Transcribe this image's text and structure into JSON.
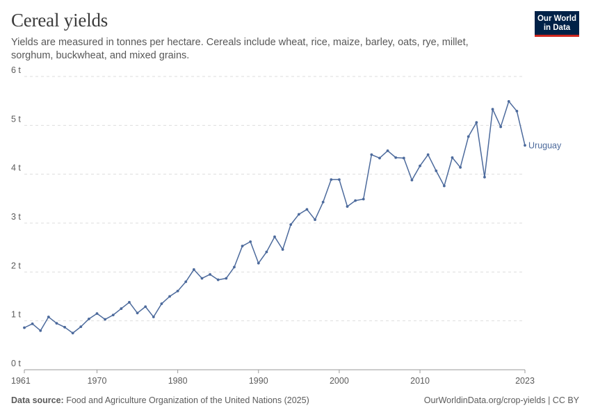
{
  "header": {
    "title": "Cereal yields",
    "subtitle": "Yields are measured in tonnes per hectare. Cereals include wheat, rice, maize, barley, oats, rye, millet, sorghum, buckwheat, and mixed grains.",
    "logo_line1": "Our World",
    "logo_line2": "in Data"
  },
  "footer": {
    "source_label": "Data source:",
    "source_text": "Food and Agriculture Organization of the United Nations (2025)",
    "credit": "OurWorldinData.org/crop-yields | CC BY"
  },
  "colors": {
    "series": "#4c6a9c",
    "grid": "#dddddd",
    "axis": "#999999",
    "text": "#5b5b5b"
  },
  "chart_data": {
    "type": "line",
    "ylim": [
      0,
      6
    ],
    "xlim": [
      1961,
      2023
    ],
    "y_ticks": [
      {
        "value": 0,
        "label": "0 t"
      },
      {
        "value": 1,
        "label": "1 t"
      },
      {
        "value": 2,
        "label": "2 t"
      },
      {
        "value": 3,
        "label": "3 t"
      },
      {
        "value": 4,
        "label": "4 t"
      },
      {
        "value": 5,
        "label": "5 t"
      },
      {
        "value": 6,
        "label": "6 t"
      }
    ],
    "x_ticks": [
      {
        "value": 1961,
        "label": "1961"
      },
      {
        "value": 1970,
        "label": "1970"
      },
      {
        "value": 1980,
        "label": "1980"
      },
      {
        "value": 1990,
        "label": "1990"
      },
      {
        "value": 2000,
        "label": "2000"
      },
      {
        "value": 2010,
        "label": "2010"
      },
      {
        "value": 2023,
        "label": "2023"
      }
    ],
    "grid": true,
    "series": [
      {
        "name": "Uruguay",
        "x": [
          1961,
          1962,
          1963,
          1964,
          1965,
          1966,
          1967,
          1968,
          1969,
          1970,
          1971,
          1972,
          1973,
          1974,
          1975,
          1976,
          1977,
          1978,
          1979,
          1980,
          1981,
          1982,
          1983,
          1984,
          1985,
          1986,
          1987,
          1988,
          1989,
          1990,
          1991,
          1992,
          1993,
          1994,
          1995,
          1996,
          1997,
          1998,
          1999,
          2000,
          2001,
          2002,
          2003,
          2004,
          2005,
          2006,
          2007,
          2008,
          2009,
          2010,
          2011,
          2012,
          2013,
          2014,
          2015,
          2016,
          2017,
          2018,
          2019,
          2020,
          2021,
          2022,
          2023
        ],
        "values": [
          0.86,
          0.94,
          0.8,
          1.08,
          0.95,
          0.87,
          0.75,
          0.88,
          1.04,
          1.15,
          1.03,
          1.12,
          1.25,
          1.38,
          1.16,
          1.29,
          1.08,
          1.35,
          1.5,
          1.61,
          1.8,
          2.05,
          1.87,
          1.95,
          1.84,
          1.87,
          2.1,
          2.53,
          2.62,
          2.18,
          2.41,
          2.72,
          2.46,
          2.97,
          3.18,
          3.28,
          3.07,
          3.43,
          3.89,
          3.89,
          3.34,
          3.46,
          3.49,
          4.4,
          4.33,
          4.48,
          4.34,
          4.33,
          3.88,
          4.17,
          4.4,
          4.07,
          3.76,
          4.34,
          4.14,
          4.77,
          5.06,
          3.94,
          5.33,
          4.97,
          5.49,
          5.29,
          4.59
        ]
      }
    ]
  }
}
